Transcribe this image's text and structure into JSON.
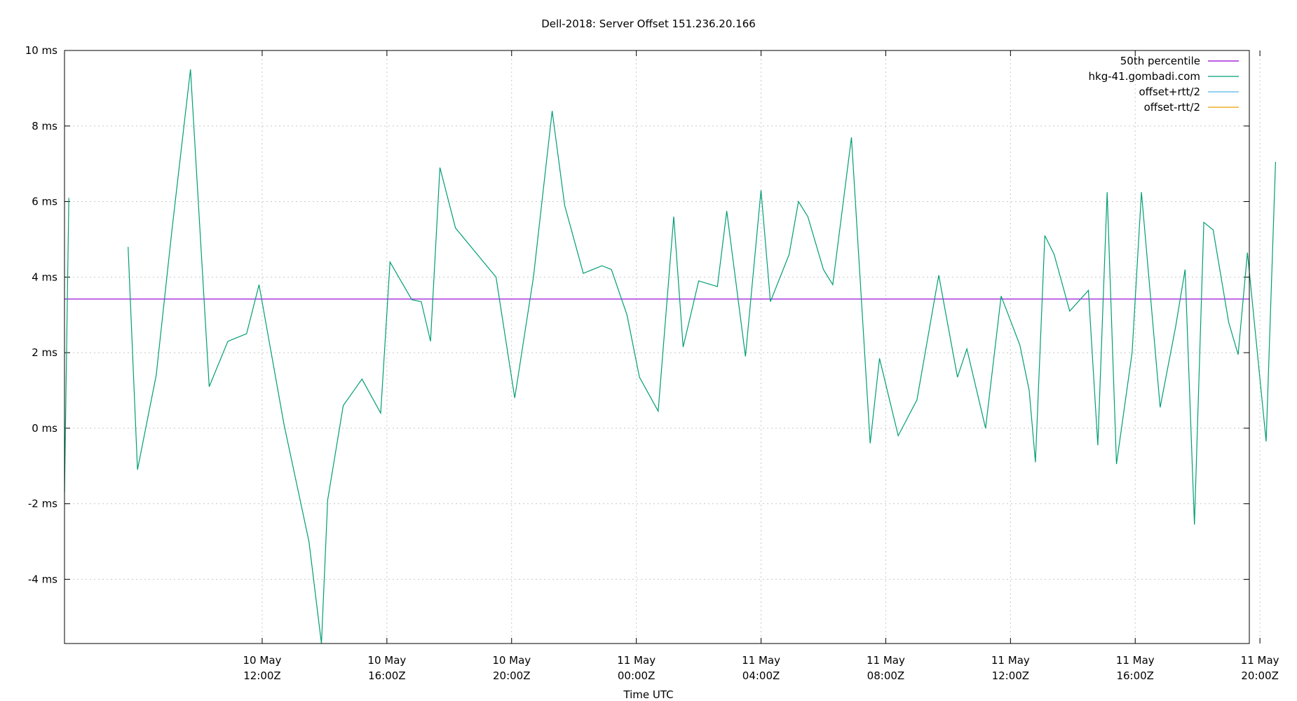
{
  "chart_data": {
    "type": "line",
    "title": "Dell-2018: Server Offset 151.236.20.166",
    "xlabel": "Time UTC",
    "ylabel": "",
    "x_unit": "hours since 10 May 00:00Z",
    "xlim": [
      8.83,
      27.83
    ],
    "ylim": [
      -5.7,
      10.0
    ],
    "grid": true,
    "legend_position": "top-right",
    "x_ticks": [
      {
        "x": 12,
        "line1": "10 May",
        "line2": "12:00Z"
      },
      {
        "x": 14,
        "line1": "10 May",
        "line2": "16:00Z"
      },
      {
        "x": 16,
        "line1": "10 May",
        "line2": "20:00Z"
      },
      {
        "x": 18,
        "line1": "11 May",
        "line2": "00:00Z"
      },
      {
        "x": 20,
        "line1": "11 May",
        "line2": "04:00Z"
      },
      {
        "x": 22,
        "line1": "11 May",
        "line2": "08:00Z"
      },
      {
        "x": 24,
        "line1": "11 May",
        "line2": "12:00Z"
      },
      {
        "x": 26,
        "line1": "11 May",
        "line2": "16:00Z"
      },
      {
        "x": 28,
        "line1": "11 May",
        "line2": "20:00Z"
      }
    ],
    "y_ticks": [
      {
        "y": 10,
        "label": "10 ms"
      },
      {
        "y": 8,
        "label": "8 ms"
      },
      {
        "y": 6,
        "label": "6 ms"
      },
      {
        "y": 4,
        "label": "4 ms"
      },
      {
        "y": 2,
        "label": "2 ms"
      },
      {
        "y": 0,
        "label": "0 ms"
      },
      {
        "y": -2,
        "label": "-2 ms"
      },
      {
        "y": -4,
        "label": "-4 ms"
      }
    ],
    "series": [
      {
        "name": "50th percentile",
        "color": "#9400d3",
        "kind": "hline",
        "value": 3.42
      },
      {
        "name": "hkg-41.gombadi.com",
        "color": "#009e73",
        "kind": "line",
        "segments": [
          [
            [
              8.83,
              -1.7
            ],
            [
              8.9,
              6.1
            ]
          ],
          [
            [
              9.85,
              4.8
            ],
            [
              10.0,
              -1.1
            ],
            [
              10.3,
              1.4
            ],
            [
              10.55,
              5.2
            ],
            [
              10.85,
              9.5
            ],
            [
              11.15,
              1.1
            ],
            [
              11.45,
              2.3
            ],
            [
              11.75,
              2.5
            ],
            [
              11.95,
              3.8
            ],
            [
              12.35,
              0.1
            ],
            [
              12.75,
              -3.0
            ],
            [
              12.95,
              -5.7
            ],
            [
              13.05,
              -1.9
            ],
            [
              13.3,
              0.6
            ],
            [
              13.6,
              1.3
            ],
            [
              13.9,
              0.4
            ],
            [
              14.05,
              4.4
            ],
            [
              14.4,
              3.4
            ],
            [
              14.55,
              3.35
            ],
            [
              14.7,
              2.3
            ],
            [
              14.85,
              6.9
            ],
            [
              15.1,
              5.3
            ],
            [
              15.4,
              4.7
            ],
            [
              15.75,
              4.0
            ],
            [
              16.05,
              0.8
            ],
            [
              16.35,
              4.0
            ],
            [
              16.65,
              8.4
            ],
            [
              16.85,
              5.9
            ],
            [
              17.15,
              4.1
            ],
            [
              17.45,
              4.3
            ],
            [
              17.6,
              4.2
            ],
            [
              17.85,
              3.0
            ],
            [
              18.05,
              1.35
            ],
            [
              18.35,
              0.45
            ],
            [
              18.6,
              5.6
            ],
            [
              18.75,
              2.15
            ],
            [
              19.0,
              3.9
            ],
            [
              19.3,
              3.75
            ],
            [
              19.45,
              5.75
            ],
            [
              19.75,
              1.9
            ],
            [
              20.0,
              6.3
            ],
            [
              20.15,
              3.35
            ],
            [
              20.45,
              4.6
            ],
            [
              20.6,
              6.0
            ],
            [
              20.75,
              5.6
            ],
            [
              21.0,
              4.2
            ],
            [
              21.15,
              3.8
            ],
            [
              21.45,
              7.7
            ],
            [
              21.75,
              -0.4
            ],
            [
              21.9,
              1.85
            ],
            [
              22.2,
              -0.2
            ],
            [
              22.5,
              0.75
            ],
            [
              22.85,
              4.05
            ],
            [
              23.15,
              1.35
            ],
            [
              23.3,
              2.1
            ],
            [
              23.6,
              0.0
            ],
            [
              23.85,
              3.5
            ],
            [
              24.15,
              2.2
            ],
            [
              24.3,
              1.0
            ],
            [
              24.4,
              -0.9
            ],
            [
              24.55,
              5.1
            ],
            [
              24.7,
              4.6
            ],
            [
              24.95,
              3.1
            ],
            [
              25.25,
              3.65
            ],
            [
              25.4,
              -0.45
            ],
            [
              25.55,
              6.25
            ],
            [
              25.7,
              -0.95
            ],
            [
              25.95,
              2.0
            ],
            [
              26.1,
              6.25
            ],
            [
              26.4,
              0.55
            ],
            [
              26.65,
              2.7
            ],
            [
              26.8,
              4.2
            ],
            [
              26.95,
              -2.55
            ],
            [
              27.1,
              5.45
            ],
            [
              27.25,
              5.25
            ],
            [
              27.5,
              2.8
            ],
            [
              27.65,
              1.95
            ],
            [
              27.8,
              4.65
            ],
            [
              28.1,
              -0.35
            ],
            [
              28.25,
              7.05
            ]
          ]
        ]
      },
      {
        "name": "offset+rtt/2",
        "color": "#56b4e9",
        "kind": "legend-only"
      },
      {
        "name": "offset-rtt/2",
        "color": "#e69f00",
        "kind": "legend-only"
      }
    ]
  }
}
